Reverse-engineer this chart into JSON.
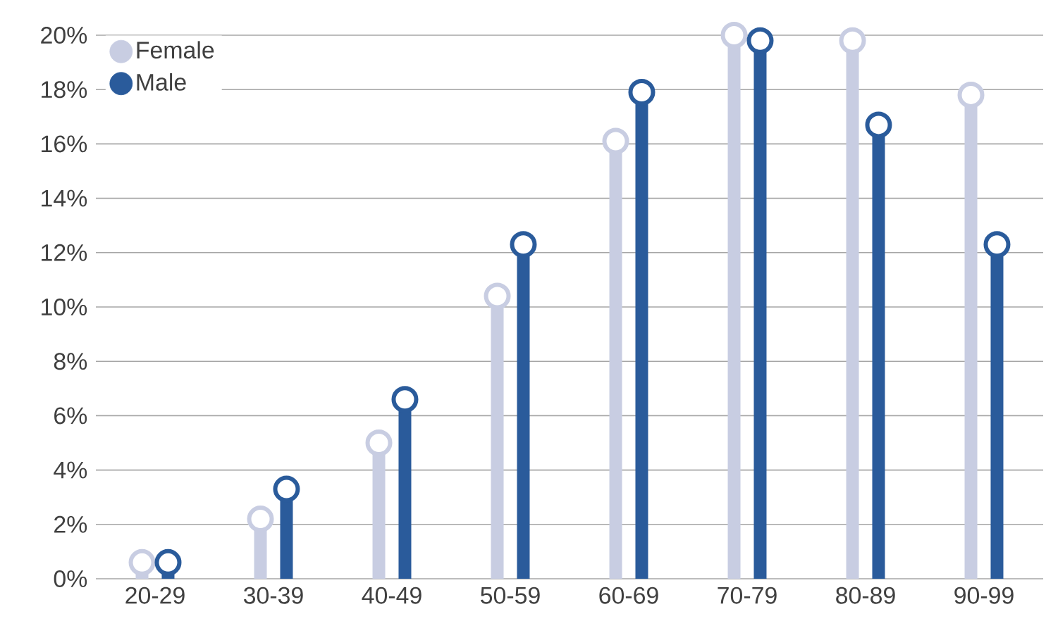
{
  "chart_data": {
    "type": "lollipop",
    "categories": [
      "20-29",
      "30-39",
      "40-49",
      "50-59",
      "60-69",
      "70-79",
      "80-89",
      "90-99"
    ],
    "series": [
      {
        "name": "Female",
        "color": "#c8cde2",
        "values": [
          0.6,
          2.2,
          5.0,
          10.4,
          16.1,
          20.0,
          19.8,
          17.8
        ]
      },
      {
        "name": "Male",
        "color": "#2a5b9b",
        "values": [
          0.6,
          3.3,
          6.6,
          12.3,
          17.9,
          19.8,
          16.7,
          12.3
        ]
      }
    ],
    "ylim": [
      0,
      20
    ],
    "yticks": [
      {
        "value": 0,
        "label": "0%"
      },
      {
        "value": 2,
        "label": "2%"
      },
      {
        "value": 4,
        "label": "4%"
      },
      {
        "value": 6,
        "label": "6%"
      },
      {
        "value": 8,
        "label": "8%"
      },
      {
        "value": 10,
        "label": "10%"
      },
      {
        "value": 12,
        "label": "12%"
      },
      {
        "value": 14,
        "label": "14%"
      },
      {
        "value": 16,
        "label": "16%"
      },
      {
        "value": 18,
        "label": "18%"
      },
      {
        "value": 20,
        "label": "20%"
      }
    ],
    "grid": "y",
    "legend": "top left",
    "marker": "circle"
  }
}
